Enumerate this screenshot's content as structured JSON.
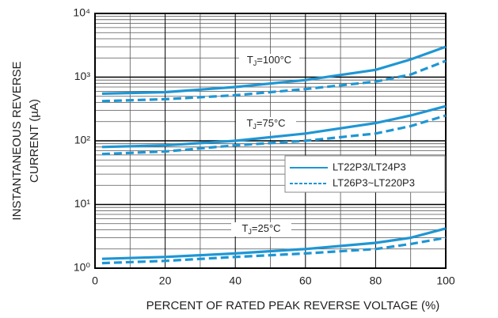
{
  "chart_data": {
    "type": "line",
    "xlabel": "PERCENT OF RATED PEAK REVERSE VOLTAGE (%)",
    "ylabel": [
      "INSTANTANEOUS REVERSE",
      "CURRENT (µA)"
    ],
    "xlim": [
      0,
      100
    ],
    "xticks": [
      0,
      20,
      40,
      60,
      80,
      100
    ],
    "ylim": [
      1,
      10000
    ],
    "log_y": true,
    "yticks": [
      {
        "value": 1,
        "label": "10⁰"
      },
      {
        "value": 10,
        "label": "10¹"
      },
      {
        "value": 100,
        "label": "10²"
      },
      {
        "value": 1000,
        "label": "10³"
      },
      {
        "value": 10000,
        "label": "10⁴"
      }
    ],
    "grid": true,
    "x": [
      2,
      20,
      40,
      60,
      80,
      90,
      100
    ],
    "series": [
      {
        "name": "LT22P3/LT24P3",
        "color": "#1e96d4",
        "dash": false,
        "values": [
          550,
          580,
          700,
          900,
          1300,
          1900,
          3000
        ]
      },
      {
        "name": "LT26P3~LT220P3",
        "color": "#1e96d4",
        "dash": true,
        "values": [
          420,
          450,
          520,
          650,
          850,
          1100,
          1800
        ]
      },
      {
        "name": "LT22P3/LT24P3",
        "color": "#1e96d4",
        "dash": false,
        "values": [
          80,
          85,
          100,
          130,
          190,
          250,
          350
        ]
      },
      {
        "name": "LT26P3~LT220P3",
        "color": "#1e96d4",
        "dash": true,
        "values": [
          62,
          68,
          85,
          100,
          130,
          170,
          250
        ]
      },
      {
        "name": "LT22P3/LT24P3",
        "color": "#1e96d4",
        "dash": false,
        "values": [
          1.4,
          1.5,
          1.7,
          2.0,
          2.5,
          3.0,
          4.2
        ]
      },
      {
        "name": "LT26P3~LT220P3",
        "color": "#1e96d4",
        "dash": true,
        "values": [
          1.2,
          1.3,
          1.5,
          1.7,
          2.0,
          2.4,
          3.0
        ]
      }
    ],
    "annotations": [
      [
        "T",
        "J",
        "=100°C"
      ],
      [
        "T",
        "J",
        "=75°C"
      ],
      [
        "T",
        "J",
        "=25°C"
      ]
    ]
  }
}
